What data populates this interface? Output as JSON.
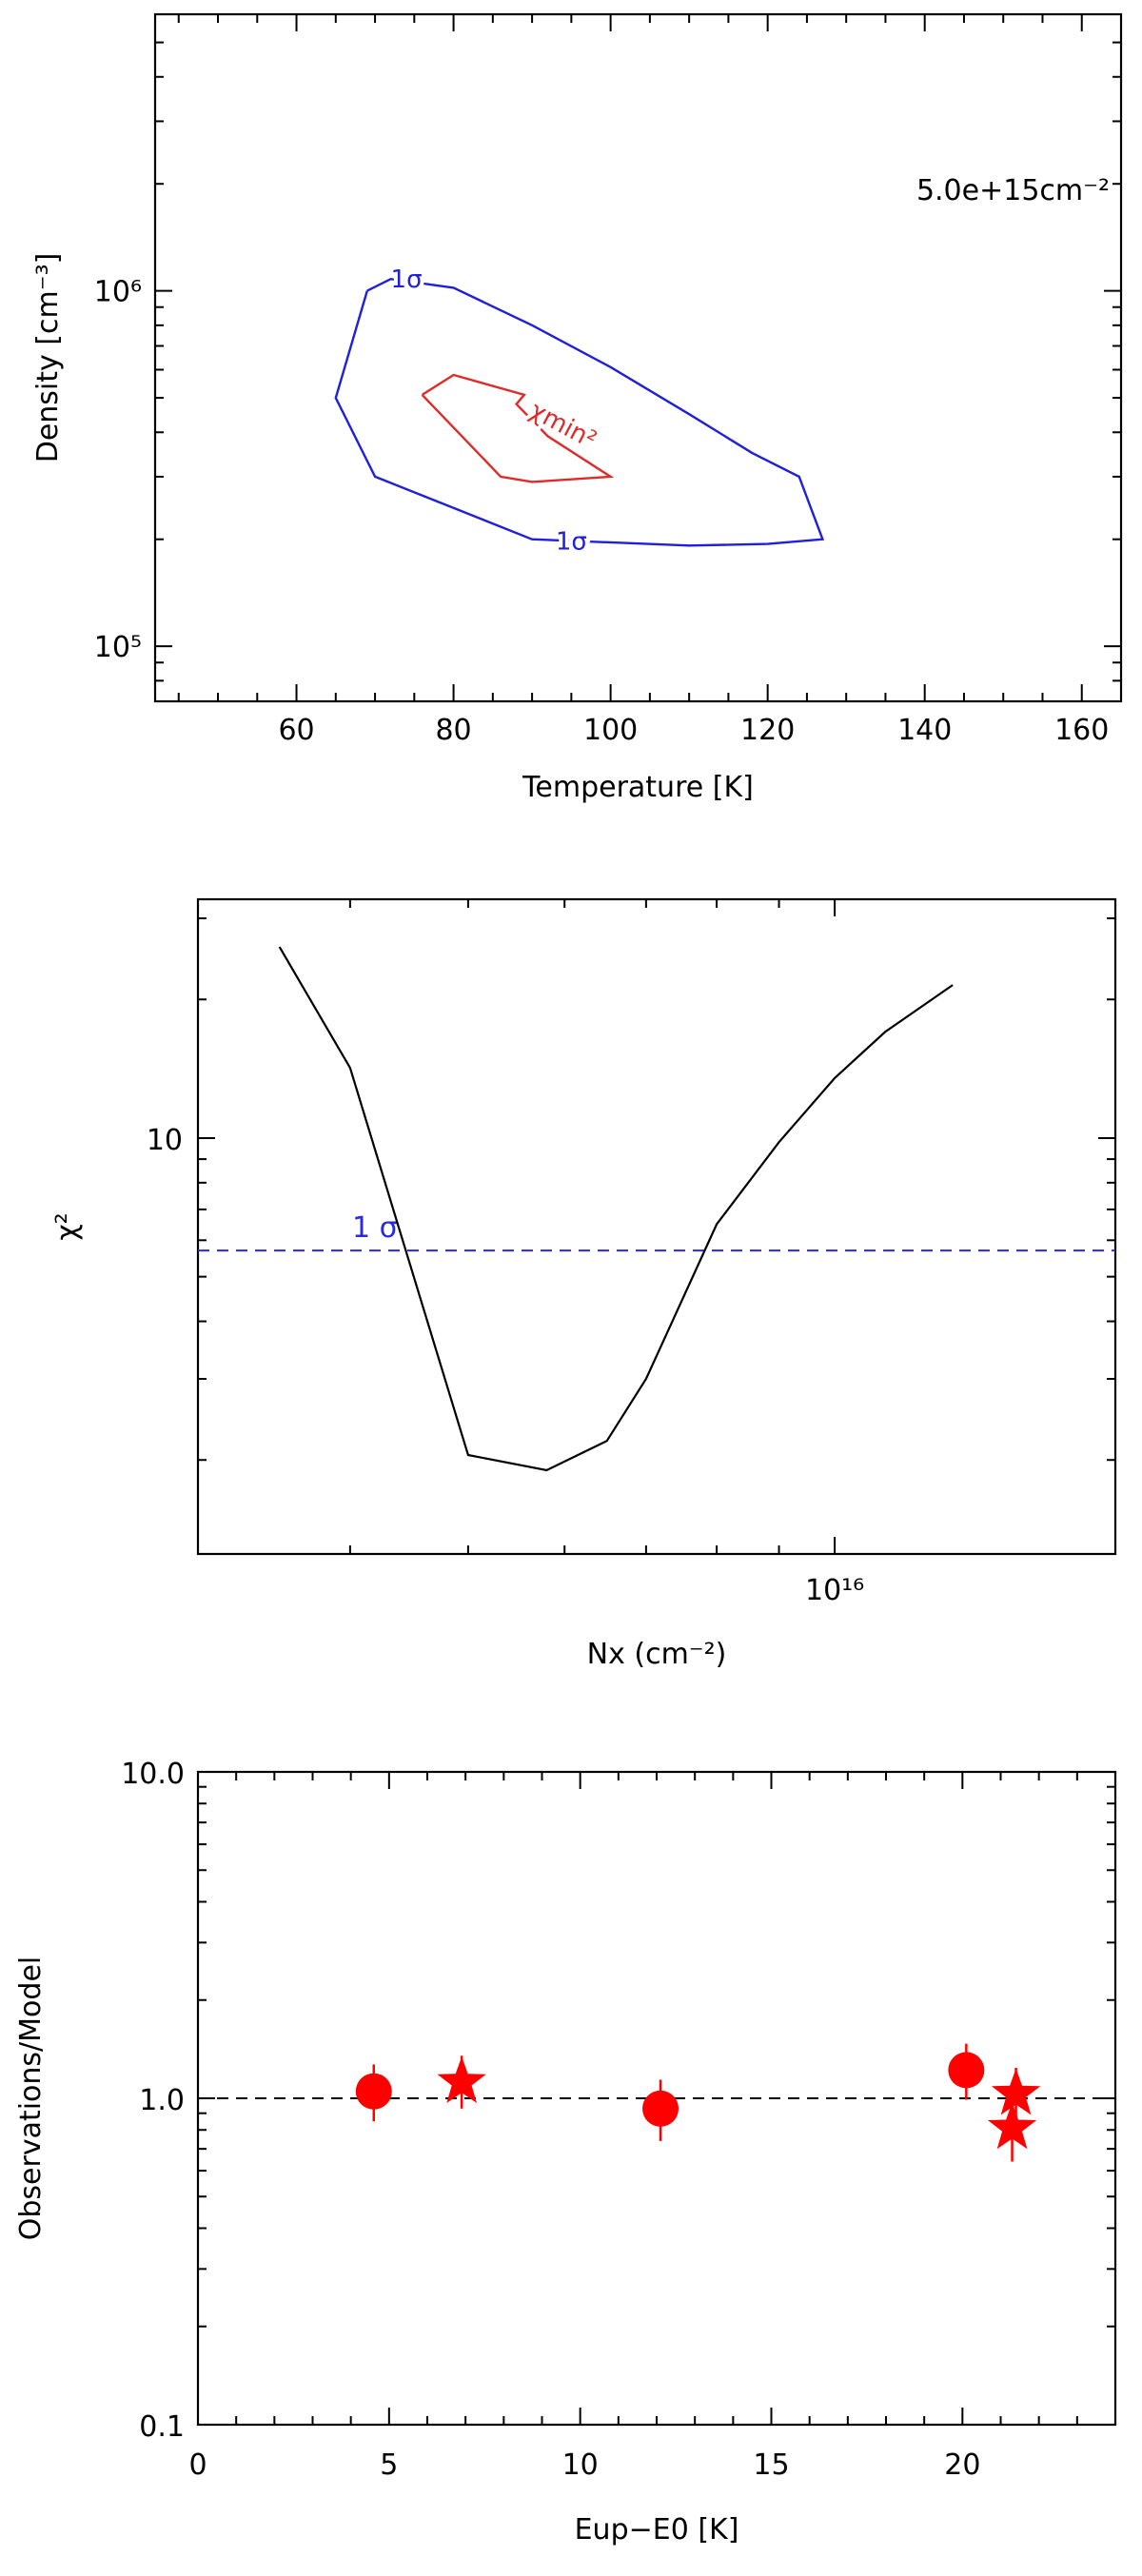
{
  "chart_data": [
    {
      "type": "line",
      "subtype": "contour",
      "xlabel": "Temperature [K]",
      "ylabel": "Density [cm⁻³]",
      "xlim": [
        42,
        165
      ],
      "ylim": [
        70000,
        6000000
      ],
      "yscale": "log",
      "xticks": [
        60,
        80,
        100,
        120,
        140,
        160
      ],
      "yticks": [
        {
          "value": 100000,
          "label": "10⁵"
        },
        {
          "value": 1000000,
          "label": "10⁶"
        }
      ],
      "annotation": "5.0e+15cm⁻²",
      "series": [
        {
          "name": "1σ",
          "color": "#1f1fdc",
          "x": [
            69,
            72,
            80,
            90,
            100,
            110,
            118,
            124,
            127,
            120,
            110,
            90,
            70,
            65,
            69
          ],
          "y": [
            1000000,
            1080000,
            1020000,
            800000,
            610000,
            450000,
            350000,
            300000,
            200000,
            194000,
            192000,
            200000,
            300000,
            500000,
            1000000
          ],
          "labels": [
            {
              "text": "1σ",
              "x": 74,
              "y": 1080000
            },
            {
              "text": "1σ",
              "x": 95,
              "y": 198000
            }
          ]
        },
        {
          "name": "χmin²",
          "color": "#e02a2a",
          "x": [
            76,
            80,
            89,
            88,
            92,
            100,
            90,
            86,
            76
          ],
          "y": [
            510000,
            580000,
            510000,
            480000,
            390000,
            300000,
            290000,
            300000,
            510000
          ],
          "labels": [
            {
              "text": "χmin²",
              "x": 94,
              "y": 420000
            }
          ]
        }
      ]
    },
    {
      "type": "line",
      "xlabel": "Nx (cm⁻²)",
      "ylabel": "χ²",
      "xscale": "log",
      "yscale": "log",
      "xlim": [
        3000000000000000,
        17000000000000000
      ],
      "ylim": [
        1.25,
        33
      ],
      "xticks": [
        {
          "value": 10000000000000000,
          "label": "10¹⁶"
        }
      ],
      "yticks": [
        {
          "value": 10,
          "label": "10"
        }
      ],
      "series": [
        {
          "name": "",
          "color": "#000000",
          "x": [
            3500000000000000,
            4000000000000000,
            5000000000000000,
            5800000000000000,
            6500000000000000,
            7000000000000000,
            8000000000000000,
            9000000000000000,
            10000000000000000,
            11000000000000000,
            12500000000000000
          ],
          "y": [
            26,
            14.2,
            2.05,
            1.9,
            2.2,
            3.0,
            6.5,
            9.8,
            13.5,
            17.0,
            21.5
          ]
        }
      ],
      "hline": {
        "y": 5.7,
        "color": "#2a2ae0",
        "style": "dashed",
        "label": "1 σ"
      }
    },
    {
      "type": "scatter",
      "xlabel": "Eup−E0 [K]",
      "ylabel": "Observations/Model",
      "yscale": "log",
      "xlim": [
        0,
        24
      ],
      "ylim": [
        0.1,
        10
      ],
      "xticks": [
        0,
        5,
        10,
        15,
        20
      ],
      "yticks": [
        {
          "value": 0.1,
          "label": "0.1"
        },
        {
          "value": 1,
          "label": "1.0"
        },
        {
          "value": 10,
          "label": "10.0"
        }
      ],
      "hline": {
        "y": 1.0,
        "color": "#000000",
        "style": "dashed"
      },
      "color": "#ff0000",
      "points": [
        {
          "x": 4.6,
          "y": 1.05,
          "ylow": 0.85,
          "yhigh": 1.27,
          "marker": "circle"
        },
        {
          "x": 6.9,
          "y": 1.12,
          "ylow": 0.93,
          "yhigh": 1.35,
          "marker": "star"
        },
        {
          "x": 12.1,
          "y": 0.93,
          "ylow": 0.74,
          "yhigh": 1.14,
          "marker": "circle"
        },
        {
          "x": 20.1,
          "y": 1.22,
          "ylow": 0.99,
          "yhigh": 1.47,
          "marker": "circle"
        },
        {
          "x": 21.4,
          "y": 1.03,
          "ylow": 0.84,
          "yhigh": 1.24,
          "marker": "star"
        },
        {
          "x": 21.3,
          "y": 0.81,
          "ylow": 0.64,
          "yhigh": 1.0,
          "marker": "star"
        }
      ]
    }
  ]
}
